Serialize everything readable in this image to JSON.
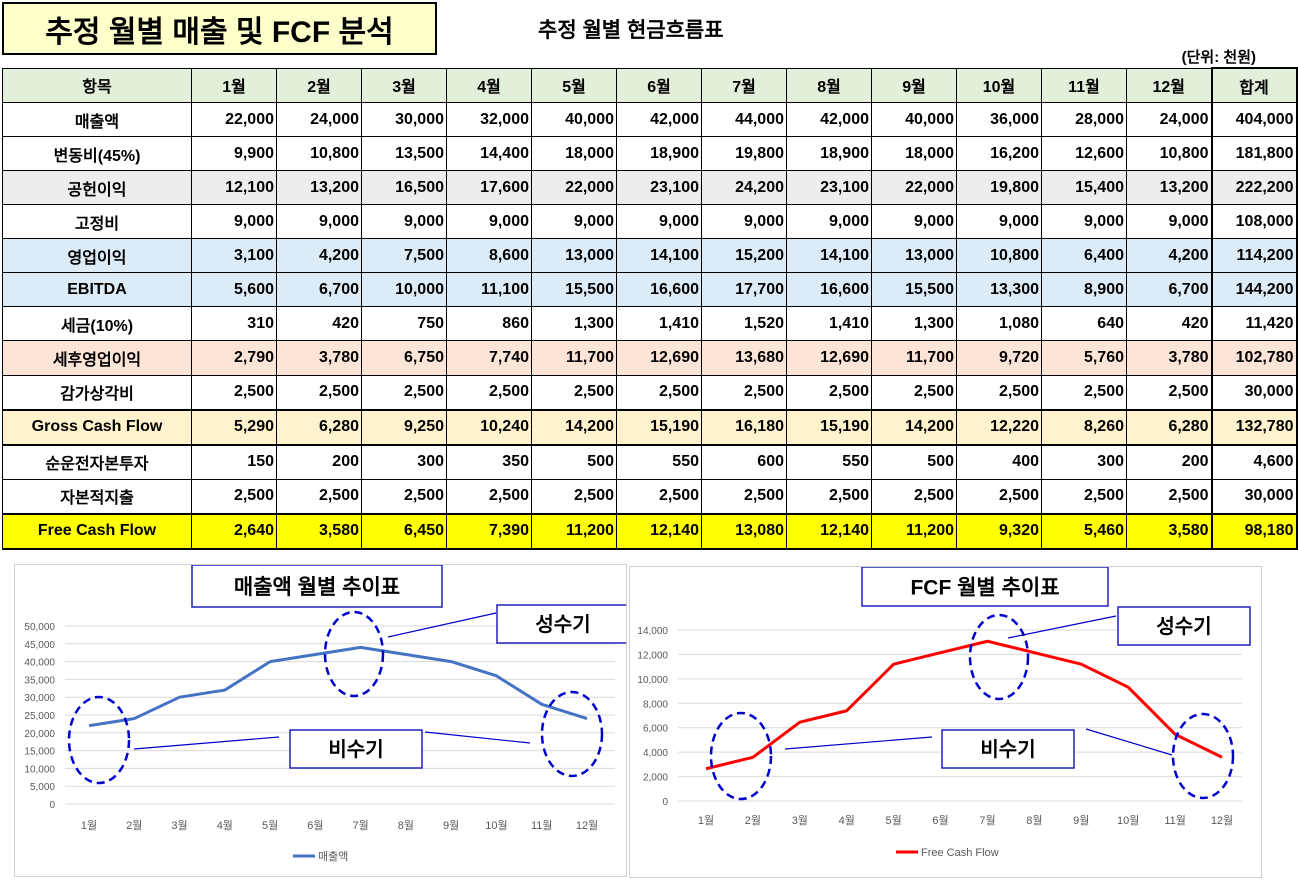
{
  "title": "추정 월별 매출 및 FCF 분석",
  "subtitle": "추정 월별 현금흐름표",
  "unit": "(단위: 천원)",
  "table": {
    "headers": [
      "항목",
      "1월",
      "2월",
      "3월",
      "4월",
      "5월",
      "6월",
      "7월",
      "8월",
      "9월",
      "10월",
      "11월",
      "12월",
      "합계"
    ],
    "rows": [
      {
        "label": "매출액",
        "values": [
          "22,000",
          "24,000",
          "30,000",
          "32,000",
          "40,000",
          "42,000",
          "44,000",
          "42,000",
          "40,000",
          "36,000",
          "28,000",
          "24,000"
        ],
        "total": "404,000"
      },
      {
        "label": "변동비(45%)",
        "values": [
          "9,900",
          "10,800",
          "13,500",
          "14,400",
          "18,000",
          "18,900",
          "19,800",
          "18,900",
          "18,000",
          "16,200",
          "12,600",
          "10,800"
        ],
        "total": "181,800"
      },
      {
        "label": "공헌이익",
        "values": [
          "12,100",
          "13,200",
          "16,500",
          "17,600",
          "22,000",
          "23,100",
          "24,200",
          "23,100",
          "22,000",
          "19,800",
          "15,400",
          "13,200"
        ],
        "total": "222,200"
      },
      {
        "label": "고정비",
        "values": [
          "9,000",
          "9,000",
          "9,000",
          "9,000",
          "9,000",
          "9,000",
          "9,000",
          "9,000",
          "9,000",
          "9,000",
          "9,000",
          "9,000"
        ],
        "total": "108,000"
      },
      {
        "label": "영업이익",
        "values": [
          "3,100",
          "4,200",
          "7,500",
          "8,600",
          "13,000",
          "14,100",
          "15,200",
          "14,100",
          "13,000",
          "10,800",
          "6,400",
          "4,200"
        ],
        "total": "114,200"
      },
      {
        "label": "EBITDA",
        "values": [
          "5,600",
          "6,700",
          "10,000",
          "11,100",
          "15,500",
          "16,600",
          "17,700",
          "16,600",
          "15,500",
          "13,300",
          "8,900",
          "6,700"
        ],
        "total": "144,200"
      },
      {
        "label": "세금(10%)",
        "values": [
          "310",
          "420",
          "750",
          "860",
          "1,300",
          "1,410",
          "1,520",
          "1,410",
          "1,300",
          "1,080",
          "640",
          "420"
        ],
        "total": "11,420"
      },
      {
        "label": "세후영업이익",
        "values": [
          "2,790",
          "3,780",
          "6,750",
          "7,740",
          "11,700",
          "12,690",
          "13,680",
          "12,690",
          "11,700",
          "9,720",
          "5,760",
          "3,780"
        ],
        "total": "102,780"
      },
      {
        "label": "감가상각비",
        "values": [
          "2,500",
          "2,500",
          "2,500",
          "2,500",
          "2,500",
          "2,500",
          "2,500",
          "2,500",
          "2,500",
          "2,500",
          "2,500",
          "2,500"
        ],
        "total": "30,000"
      },
      {
        "label": "Gross Cash Flow",
        "values": [
          "5,290",
          "6,280",
          "9,250",
          "10,240",
          "14,200",
          "15,190",
          "16,180",
          "15,190",
          "14,200",
          "12,220",
          "8,260",
          "6,280"
        ],
        "total": "132,780"
      },
      {
        "label": "순운전자본투자",
        "values": [
          "150",
          "200",
          "300",
          "350",
          "500",
          "550",
          "600",
          "550",
          "500",
          "400",
          "300",
          "200"
        ],
        "total": "4,600"
      },
      {
        "label": "자본적지출",
        "values": [
          "2,500",
          "2,500",
          "2,500",
          "2,500",
          "2,500",
          "2,500",
          "2,500",
          "2,500",
          "2,500",
          "2,500",
          "2,500",
          "2,500"
        ],
        "total": "30,000"
      },
      {
        "label": "Free Cash Flow",
        "values": [
          "2,640",
          "3,580",
          "6,450",
          "7,390",
          "11,200",
          "12,140",
          "13,080",
          "12,140",
          "11,200",
          "9,320",
          "5,460",
          "3,580"
        ],
        "total": "98,180"
      }
    ]
  },
  "chart_data": [
    {
      "type": "line",
      "title": "매출액 월별 추이표",
      "categories": [
        "1월",
        "2월",
        "3월",
        "4월",
        "5월",
        "6월",
        "7월",
        "8월",
        "9월",
        "10월",
        "11월",
        "12월"
      ],
      "series": [
        {
          "name": "매출액",
          "values": [
            22000,
            24000,
            30000,
            32000,
            40000,
            42000,
            44000,
            42000,
            40000,
            36000,
            28000,
            24000
          ],
          "color": "#4472c4"
        }
      ],
      "ylim": [
        0,
        50000
      ],
      "yticks": [
        "0",
        "5,000",
        "10,000",
        "15,000",
        "20,000",
        "25,000",
        "30,000",
        "35,000",
        "40,000",
        "45,000",
        "50,000"
      ],
      "grid": true,
      "legend": "bottom",
      "annotations": {
        "peak": "성수기",
        "offpeak": "비수기"
      }
    },
    {
      "type": "line",
      "title": "FCF 월별 추이표",
      "categories": [
        "1월",
        "2월",
        "3월",
        "4월",
        "5월",
        "6월",
        "7월",
        "8월",
        "9월",
        "10월",
        "11월",
        "12월"
      ],
      "series": [
        {
          "name": "Free Cash Flow",
          "values": [
            2640,
            3580,
            6450,
            7390,
            11200,
            12140,
            13080,
            12140,
            11200,
            9320,
            5460,
            3580
          ],
          "color": "#ff0000"
        }
      ],
      "ylim": [
        0,
        14000
      ],
      "yticks": [
        "0",
        "2,000",
        "4,000",
        "6,000",
        "8,000",
        "10,000",
        "12,000",
        "14,000"
      ],
      "grid": true,
      "legend": "bottom",
      "annotations": {
        "peak": "성수기",
        "offpeak": "비수기"
      }
    }
  ]
}
